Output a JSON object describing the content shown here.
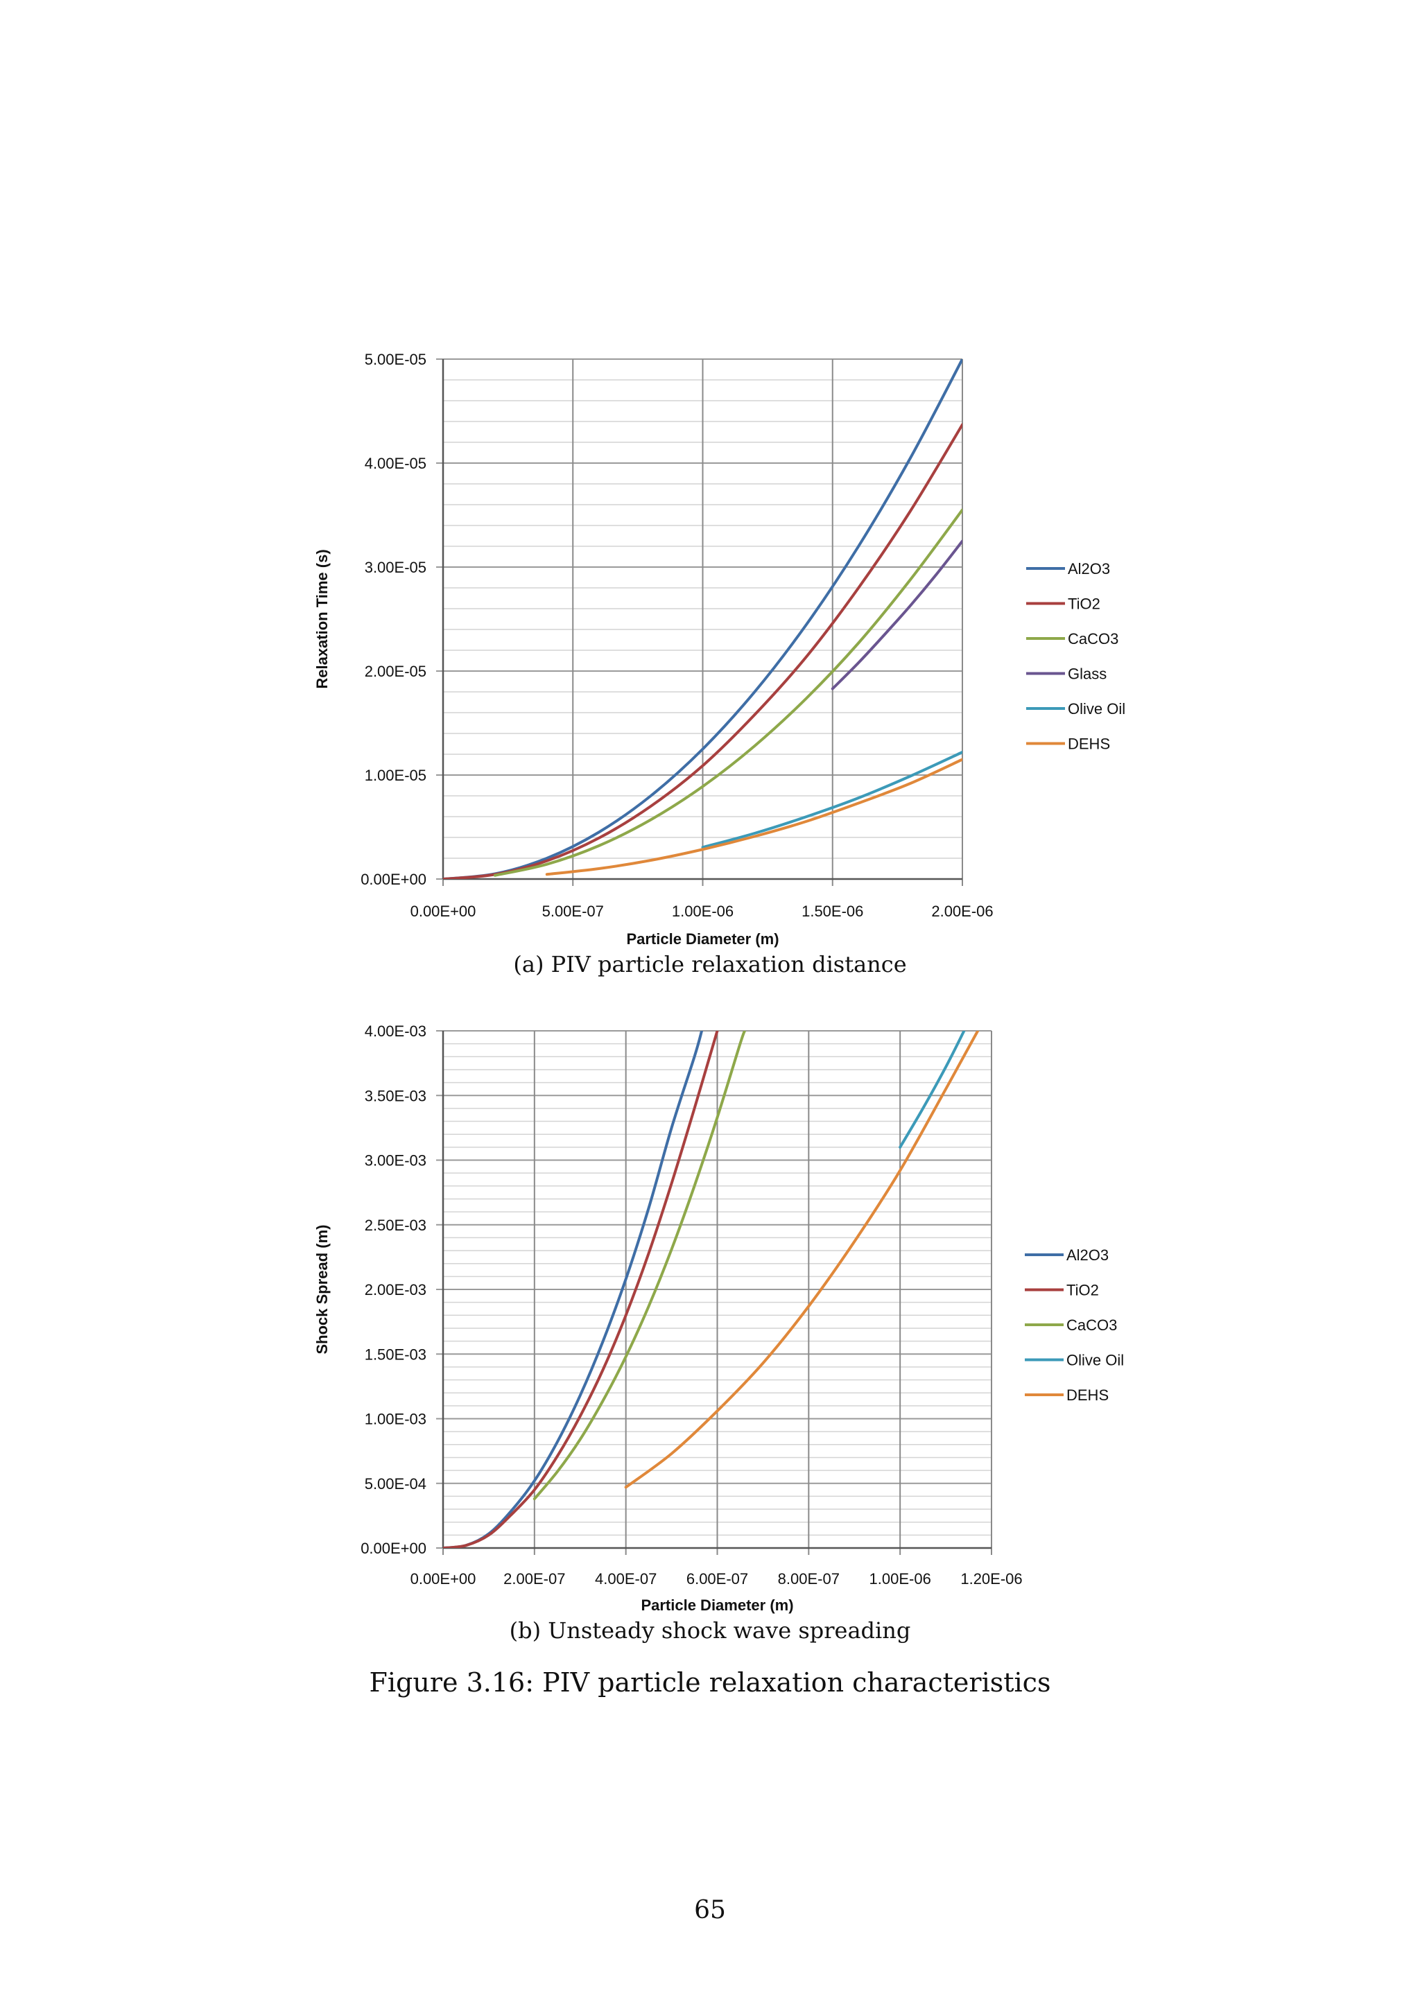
{
  "chart_data": [
    {
      "type": "line",
      "caption": "(a) PIV particle relaxation distance",
      "xlabel": "Particle Diameter (m)",
      "ylabel": "Relaxation Time (s)",
      "xlim": [
        0,
        2e-06
      ],
      "ylim": [
        0,
        5e-05
      ],
      "x_ticks": [
        "0.00E+00",
        "5.00E-07",
        "1.00E-06",
        "1.50E-06",
        "2.00E-06"
      ],
      "y_ticks": [
        "0.00E+00",
        "1.00E-05",
        "2.00E-05",
        "3.00E-05",
        "4.00E-05",
        "5.00E-05"
      ],
      "grid": true,
      "legend_position": "right",
      "series": [
        {
          "name": "Al2O3",
          "color": "#3f6ea6",
          "x": [
            0,
            2e-07,
            4e-07,
            6e-07,
            8e-07,
            1e-06,
            1.2e-06,
            1.4e-06,
            1.6e-06,
            1.8e-06,
            2e-06
          ],
          "y": [
            0,
            5e-07,
            2e-06,
            4.5e-06,
            8e-06,
            1.25e-05,
            1.8e-05,
            2.45e-05,
            3.2e-05,
            4.05e-05,
            5e-05
          ]
        },
        {
          "name": "TiO2",
          "color": "#a8403f",
          "x": [
            0,
            2e-07,
            4e-07,
            6e-07,
            8e-07,
            1e-06,
            1.2e-06,
            1.4e-06,
            1.6e-06,
            1.8e-06,
            2e-06
          ],
          "y": [
            0,
            4.4e-07,
            1.75e-06,
            3.94e-06,
            7e-06,
            1.09e-05,
            1.58e-05,
            2.14e-05,
            2.8e-05,
            3.54e-05,
            4.37e-05
          ]
        },
        {
          "name": "CaCO3",
          "color": "#8ea84a",
          "x": [
            2e-07,
            4e-07,
            6e-07,
            8e-07,
            1e-06,
            1.2e-06,
            1.4e-06,
            1.6e-06,
            1.8e-06,
            2e-06
          ],
          "y": [
            3.5e-07,
            1.42e-06,
            3.2e-06,
            5.7e-06,
            8.9e-06,
            1.28e-05,
            1.74e-05,
            2.27e-05,
            2.88e-05,
            3.55e-05
          ]
        },
        {
          "name": "Glass",
          "color": "#6a5590",
          "x": [
            1.5e-06,
            1.6e-06,
            1.7e-06,
            1.8e-06,
            1.9e-06,
            2e-06
          ],
          "y": [
            1.83e-05,
            2.08e-05,
            2.35e-05,
            2.63e-05,
            2.93e-05,
            3.25e-05
          ]
        },
        {
          "name": "Olive Oil",
          "color": "#3c9ab8",
          "x": [
            1e-06,
            1.2e-06,
            1.4e-06,
            1.6e-06,
            1.8e-06,
            2e-06
          ],
          "y": [
            3.05e-06,
            4.4e-06,
            6e-06,
            7.8e-06,
            9.9e-06,
            1.22e-05
          ]
        },
        {
          "name": "DEHS",
          "color": "#e0883a",
          "x": [
            4e-07,
            6e-07,
            8e-07,
            1e-06,
            1.2e-06,
            1.4e-06,
            1.6e-06,
            1.8e-06,
            2e-06
          ],
          "y": [
            4.5e-07,
            1e-06,
            1.8e-06,
            2.85e-06,
            4.1e-06,
            5.55e-06,
            7.3e-06,
            9.2e-06,
            1.15e-05
          ]
        }
      ]
    },
    {
      "type": "line",
      "caption": "(b) Unsteady shock wave spreading",
      "xlabel": "Particle Diameter (m)",
      "ylabel": "Shock Spread (m)",
      "xlim": [
        0,
        1.2e-06
      ],
      "ylim": [
        0,
        0.004
      ],
      "x_ticks": [
        "0.00E+00",
        "2.00E-07",
        "4.00E-07",
        "6.00E-07",
        "8.00E-07",
        "1.00E-06",
        "1.20E-06"
      ],
      "y_ticks": [
        "0.00E+00",
        "5.00E-04",
        "1.00E-03",
        "1.50E-03",
        "2.00E-03",
        "2.50E-03",
        "3.00E-03",
        "3.50E-03",
        "4.00E-03"
      ],
      "grid": true,
      "legend_position": "right",
      "series": [
        {
          "name": "Al2O3",
          "color": "#3f6ea6",
          "x": [
            0,
            5e-08,
            1e-07,
            1.5e-07,
            2e-07,
            2.5e-07,
            3e-07,
            3.5e-07,
            4e-07,
            4.5e-07,
            5e-07,
            5.5e-07,
            5.66e-07
          ],
          "y": [
            0,
            2e-05,
            0.00011,
            0.00029,
            0.00052,
            0.00082,
            0.00118,
            0.0016,
            0.00208,
            0.00263,
            0.00325,
            0.0038,
            0.004
          ]
        },
        {
          "name": "TiO2",
          "color": "#a8403f",
          "x": [
            0,
            5e-08,
            1e-07,
            1.5e-07,
            2e-07,
            2.5e-07,
            3e-07,
            3.5e-07,
            4e-07,
            4.5e-07,
            5e-07,
            5.5e-07,
            6e-07
          ],
          "y": [
            0,
            2e-05,
            0.0001,
            0.00026,
            0.00045,
            0.00071,
            0.00102,
            0.00138,
            0.0018,
            0.00228,
            0.00282,
            0.0034,
            0.004
          ]
        },
        {
          "name": "CaCO3",
          "color": "#8ea84a",
          "x": [
            2e-07,
            2.5e-07,
            3e-07,
            3.5e-07,
            4e-07,
            4.5e-07,
            5e-07,
            5.5e-07,
            6e-07,
            6.5e-07,
            6.6e-07
          ],
          "y": [
            0.00038,
            0.00059,
            0.00084,
            0.00114,
            0.00148,
            0.00187,
            0.00231,
            0.0028,
            0.00333,
            0.0039,
            0.004
          ]
        },
        {
          "name": "Olive Oil",
          "color": "#3c9ab8",
          "x": [
            1e-06,
            1.05e-06,
            1.1e-06,
            1.14e-06
          ],
          "y": [
            0.0031,
            0.0034,
            0.00372,
            0.004
          ]
        },
        {
          "name": "DEHS",
          "color": "#e0883a",
          "x": [
            4e-07,
            5e-07,
            6e-07,
            7e-07,
            8e-07,
            9e-07,
            1e-06,
            1.1e-06,
            1.17e-06
          ],
          "y": [
            0.00047,
            0.00073,
            0.00106,
            0.00143,
            0.00187,
            0.00237,
            0.00292,
            0.00355,
            0.004
          ]
        }
      ]
    }
  ],
  "figure_caption": "Figure 3.16: PIV particle relaxation characteristics",
  "page_number": "65"
}
